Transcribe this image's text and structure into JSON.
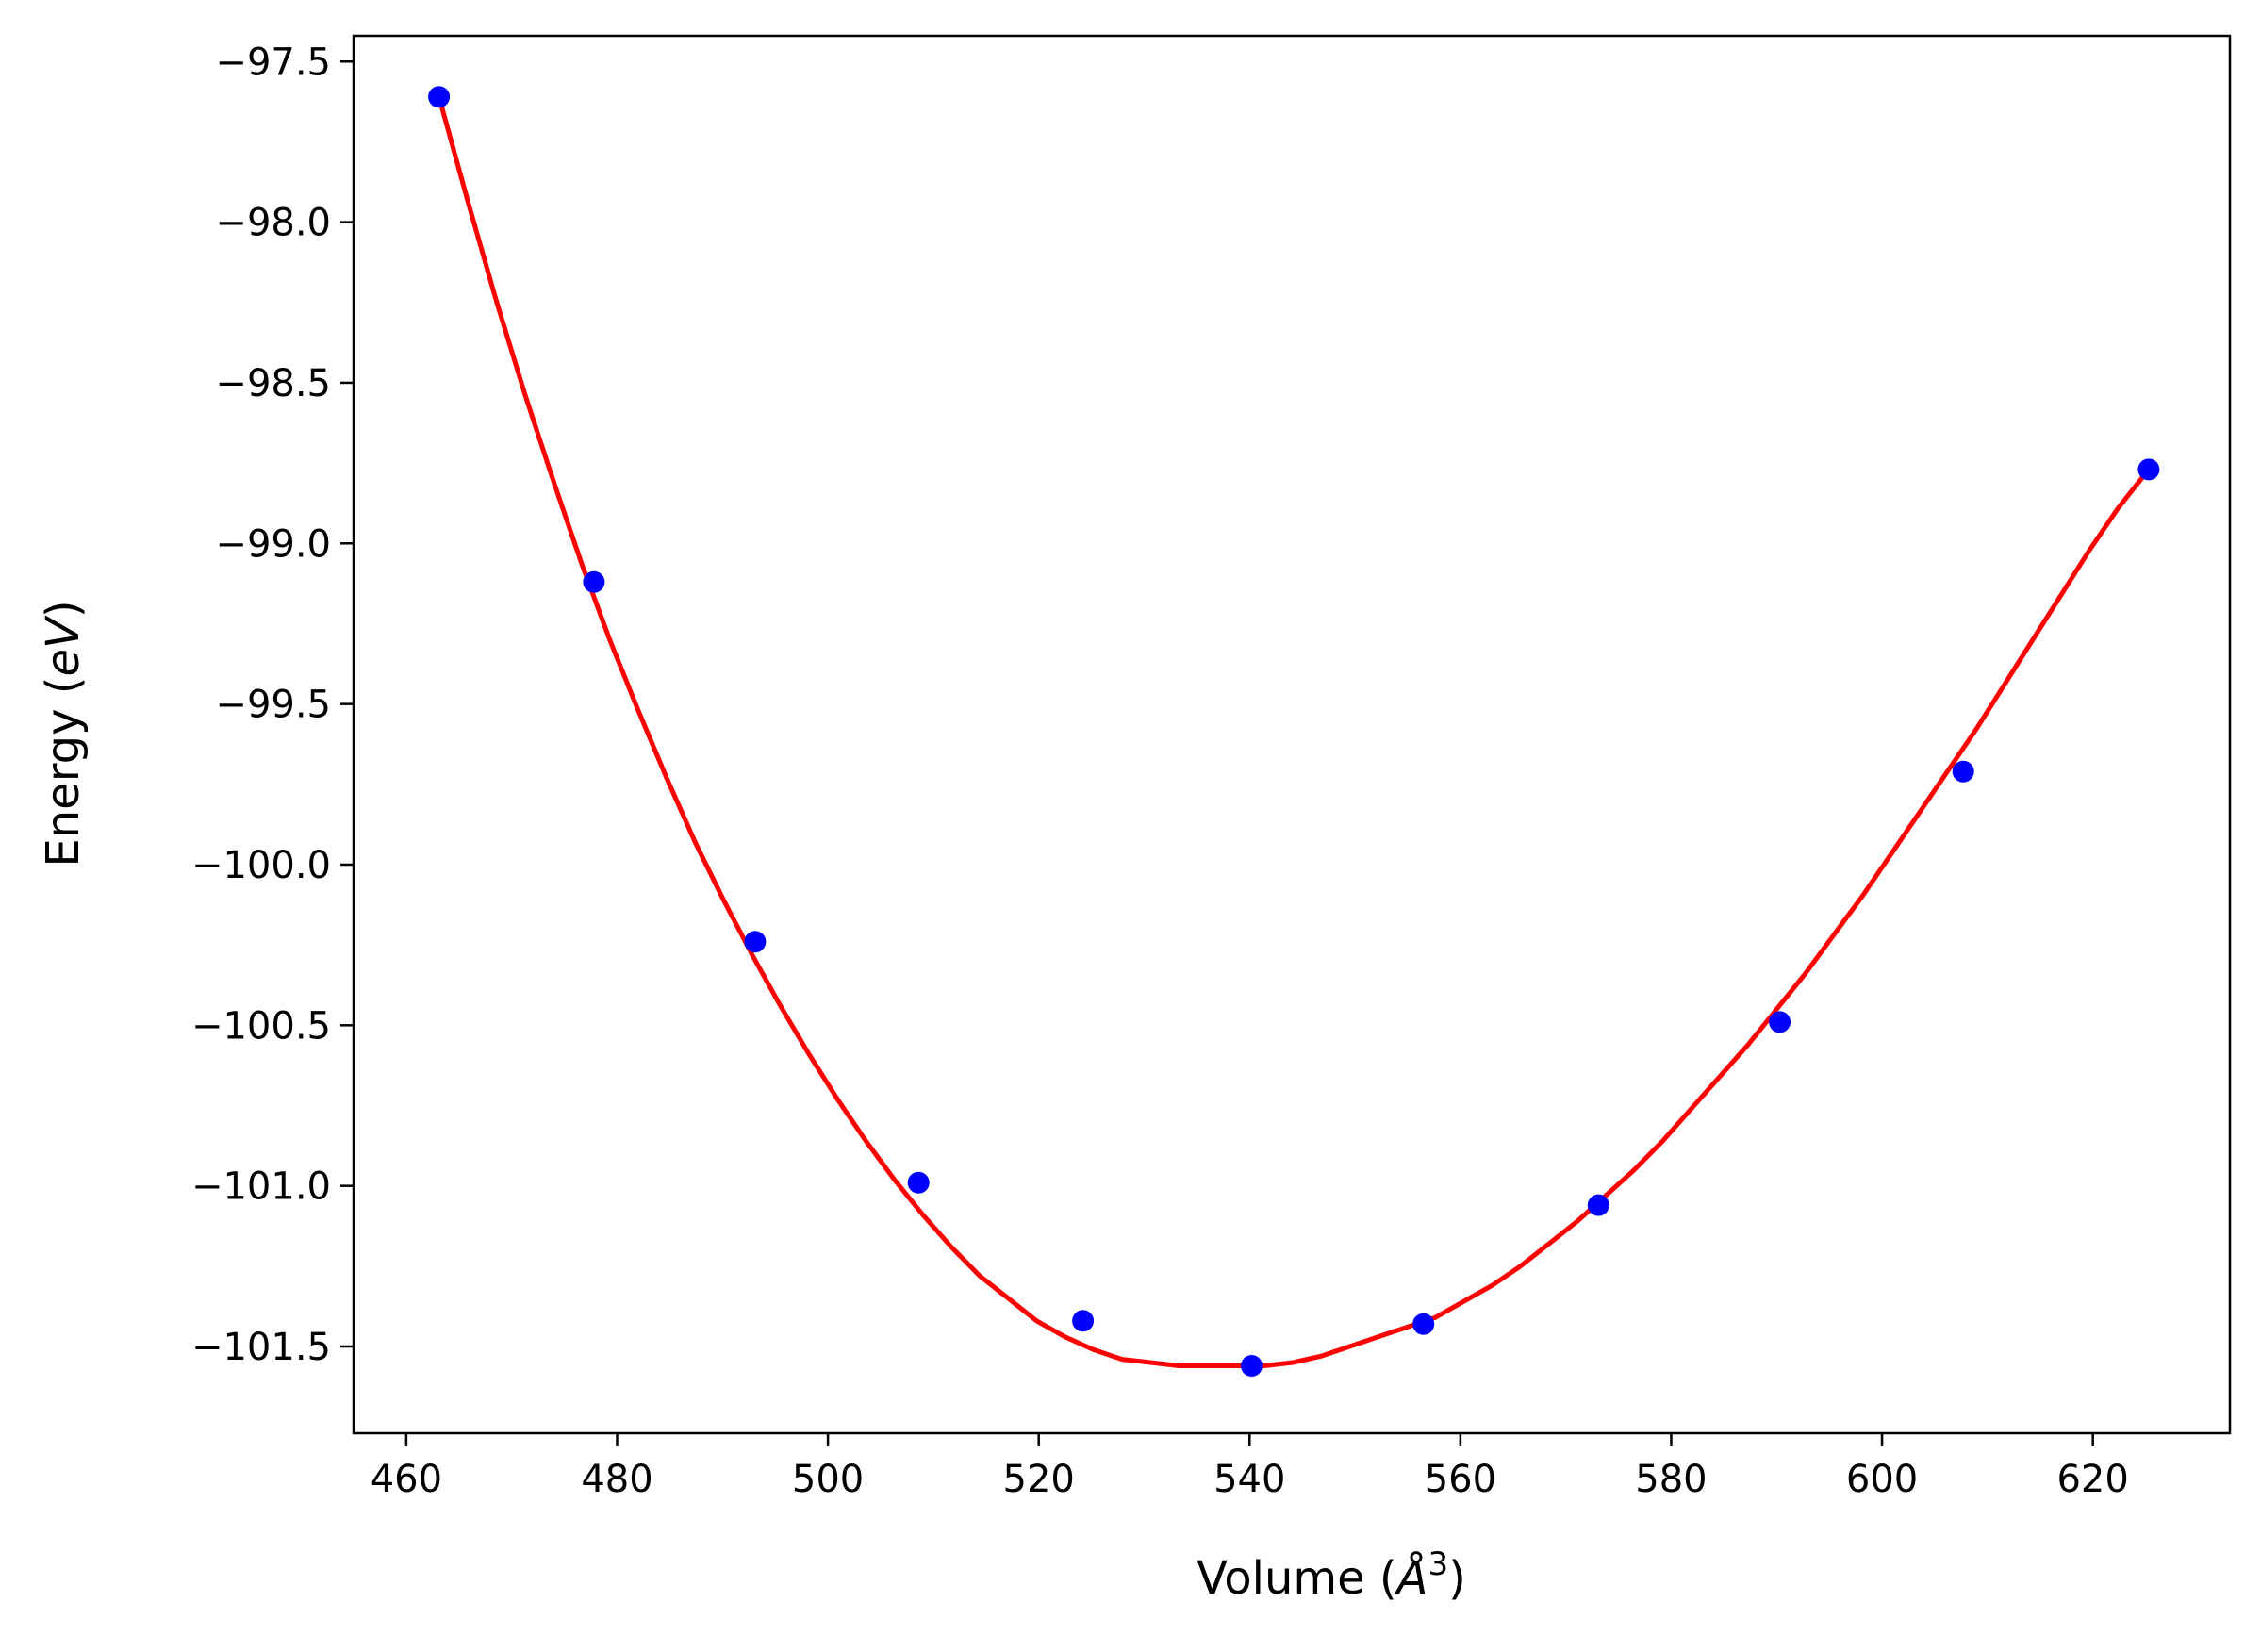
{
  "chart_data": {
    "type": "scatter",
    "xlabel": "Volume (",
    "xlabel_symbol": "Å",
    "xlabel_exponent": "3",
    "xlabel_close": ")",
    "ylabel": "Energy (",
    "ylabel_unit": "eV",
    "ylabel_close": ")",
    "xlim": [
      455,
      633
    ],
    "ylim": [
      -101.77,
      -97.42
    ],
    "xticks": [
      460,
      480,
      500,
      520,
      540,
      560,
      580,
      600,
      620
    ],
    "yticks": [
      -97.5,
      -98.0,
      -98.5,
      -99.0,
      -99.5,
      -100.0,
      -100.5,
      -101.0,
      -101.5
    ],
    "ytick_labels": [
      "−97.5",
      "−98.0",
      "−98.5",
      "−99.0",
      "−99.5",
      "−100.0",
      "−100.5",
      "−101.0",
      "−101.5"
    ],
    "grid": false,
    "series": [
      {
        "role": "points",
        "color": "#0000ff",
        "marker": "circle",
        "x": [
          463.1,
          477.8,
          493.1,
          508.6,
          524.2,
          540.2,
          556.5,
          573.1,
          590.3,
          607.7,
          625.3
        ],
        "y": [
          -97.61,
          -99.12,
          -100.24,
          -100.99,
          -101.42,
          -101.56,
          -101.43,
          -101.06,
          -100.49,
          -99.71,
          -98.77
        ]
      },
      {
        "role": "fit",
        "color": "#ff0000",
        "style": "line",
        "x": [
          463.1,
          465.8,
          468.5,
          471.2,
          473.9,
          476.6,
          479.3,
          482.0,
          484.7,
          487.4,
          490.1,
          492.8,
          495.5,
          498.2,
          500.9,
          503.6,
          506.3,
          509.0,
          511.7,
          514.4,
          517.1,
          519.8,
          522.5,
          525.2,
          527.9,
          530.6,
          533.3,
          536.0,
          538.7,
          541.4,
          544.1,
          546.8,
          549.5,
          552.2,
          554.9,
          557.6,
          560.3,
          563.0,
          565.7,
          568.4,
          571.1,
          573.8,
          576.5,
          579.2,
          581.9,
          584.6,
          587.3,
          590.0,
          592.7,
          595.4,
          598.1,
          600.8,
          603.5,
          606.2,
          608.9,
          611.6,
          614.3,
          617.0,
          619.7,
          622.4,
          625.3
        ],
        "y": [
          -97.61,
          -97.93,
          -98.24,
          -98.53,
          -98.8,
          -99.06,
          -99.3,
          -99.52,
          -99.73,
          -99.93,
          -100.11,
          -100.28,
          -100.44,
          -100.59,
          -100.73,
          -100.86,
          -100.98,
          -101.09,
          -101.19,
          -101.28,
          -101.35,
          -101.42,
          -101.47,
          -101.51,
          -101.54,
          -101.55,
          -101.56,
          -101.56,
          -101.56,
          -101.56,
          -101.55,
          -101.53,
          -101.5,
          -101.47,
          -101.44,
          -101.41,
          -101.36,
          -101.31,
          -101.25,
          -101.18,
          -101.11,
          -101.03,
          -100.95,
          -100.86,
          -100.76,
          -100.66,
          -100.56,
          -100.45,
          -100.34,
          -100.22,
          -100.1,
          -99.97,
          -99.84,
          -99.71,
          -99.58,
          -99.44,
          -99.3,
          -99.16,
          -99.02,
          -98.89,
          -98.77
        ]
      }
    ]
  }
}
